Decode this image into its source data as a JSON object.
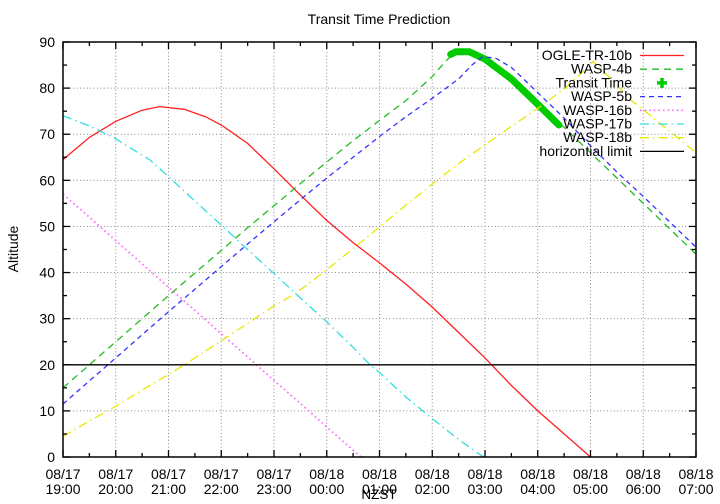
{
  "chart_data": {
    "type": "line",
    "title": "Transit Time Prediction",
    "xlabel": "NZST",
    "ylabel": "Altitude",
    "ylim": [
      0,
      90
    ],
    "xlim_hours": [
      0,
      12
    ],
    "grid": true,
    "legend_position": "top-right-inside",
    "y_ticks": [
      0,
      10,
      20,
      30,
      40,
      50,
      60,
      70,
      80,
      90
    ],
    "x_ticks": [
      {
        "date": "08/17",
        "time": "19:00"
      },
      {
        "date": "08/17",
        "time": "20:00"
      },
      {
        "date": "08/17",
        "time": "21:00"
      },
      {
        "date": "08/17",
        "time": "22:00"
      },
      {
        "date": "08/17",
        "time": "23:00"
      },
      {
        "date": "08/18",
        "time": "00:00"
      },
      {
        "date": "08/18",
        "time": "01:00"
      },
      {
        "date": "08/18",
        "time": "02:00"
      },
      {
        "date": "08/18",
        "time": "03:00"
      },
      {
        "date": "08/18",
        "time": "04:00"
      },
      {
        "date": "08/18",
        "time": "05:00"
      },
      {
        "date": "08/18",
        "time": "06:00"
      },
      {
        "date": "08/18",
        "time": "07:00"
      }
    ],
    "grid_color": "#888888",
    "series": [
      {
        "name": "OGLE-TR-10b",
        "color": "#ff2020",
        "style": "solid",
        "points": [
          [
            0,
            64.5
          ],
          [
            0.5,
            69.3
          ],
          [
            1,
            72.8
          ],
          [
            1.5,
            75.2
          ],
          [
            1.83,
            76
          ],
          [
            2.3,
            75.4
          ],
          [
            2.7,
            73.8
          ],
          [
            3,
            72
          ],
          [
            3.5,
            68
          ],
          [
            4,
            62.5
          ],
          [
            4.5,
            56.8
          ],
          [
            5,
            51.3
          ],
          [
            5.5,
            46.5
          ],
          [
            6,
            42.1
          ],
          [
            6.5,
            37.5
          ],
          [
            7,
            32.5
          ],
          [
            7.5,
            27
          ],
          [
            8,
            21.5
          ],
          [
            8.5,
            15.5
          ],
          [
            9,
            10
          ],
          [
            9.5,
            5
          ],
          [
            10,
            0
          ]
        ]
      },
      {
        "name": "WASP-4b",
        "color": "#22bb22",
        "style": "dashed",
        "points": [
          [
            0,
            15
          ],
          [
            0.5,
            20
          ],
          [
            1,
            25
          ],
          [
            1.5,
            30
          ],
          [
            2,
            35
          ],
          [
            2.5,
            39.9
          ],
          [
            3,
            44.8
          ],
          [
            3.5,
            49.7
          ],
          [
            4,
            54.5
          ],
          [
            4.5,
            59.3
          ],
          [
            5,
            64
          ],
          [
            5.5,
            68.6
          ],
          [
            6,
            73
          ],
          [
            6.5,
            77.3
          ],
          [
            7,
            82.5
          ],
          [
            7.25,
            85.8
          ],
          [
            7.45,
            87.9
          ],
          [
            7.7,
            87.9
          ],
          [
            8,
            86.3
          ],
          [
            8.5,
            82
          ],
          [
            9,
            76.5
          ],
          [
            9.5,
            71.5
          ],
          [
            10,
            66
          ],
          [
            10.5,
            60.5
          ],
          [
            11,
            55
          ],
          [
            11.5,
            49.5
          ],
          [
            12,
            44
          ]
        ]
      },
      {
        "name": "Transit Time",
        "color": "#00cc00",
        "style": "thick",
        "points": [
          [
            7.35,
            87.3
          ],
          [
            7.45,
            87.9
          ],
          [
            7.7,
            87.9
          ],
          [
            8,
            86.3
          ],
          [
            8.5,
            82
          ],
          [
            9,
            76.5
          ],
          [
            9.4,
            72
          ]
        ]
      },
      {
        "name": "WASP-5b",
        "color": "#3333ff",
        "style": "dashed2",
        "points": [
          [
            0,
            11.5
          ],
          [
            0.5,
            16.5
          ],
          [
            1,
            21.5
          ],
          [
            1.5,
            26.5
          ],
          [
            2,
            31.5
          ],
          [
            2.5,
            36.4
          ],
          [
            3,
            41.3
          ],
          [
            3.5,
            46.2
          ],
          [
            4,
            51
          ],
          [
            4.5,
            55.8
          ],
          [
            5,
            60.5
          ],
          [
            5.5,
            65
          ],
          [
            6,
            69.5
          ],
          [
            6.5,
            73.8
          ],
          [
            7,
            77.8
          ],
          [
            7.5,
            82
          ],
          [
            7.75,
            85
          ],
          [
            7.95,
            86.8
          ],
          [
            8.2,
            86.5
          ],
          [
            8.5,
            84.5
          ],
          [
            9,
            79
          ],
          [
            9.5,
            73.5
          ],
          [
            10,
            67.5
          ],
          [
            10.5,
            61.8
          ],
          [
            11,
            56.5
          ],
          [
            11.5,
            51
          ],
          [
            12,
            45.5
          ]
        ]
      },
      {
        "name": "WASP-16b",
        "color": "#ff66ff",
        "style": "dotted",
        "points": [
          [
            0,
            57
          ],
          [
            0.5,
            52
          ],
          [
            1,
            46.9
          ],
          [
            1.5,
            41.9
          ],
          [
            2,
            36.8
          ],
          [
            2.5,
            31.8
          ],
          [
            3,
            26.7
          ],
          [
            3.5,
            21.7
          ],
          [
            4,
            16.6
          ],
          [
            4.5,
            11.6
          ],
          [
            5,
            6.5
          ],
          [
            5.5,
            1.5
          ],
          [
            5.65,
            0
          ]
        ]
      },
      {
        "name": "WASP-17b",
        "color": "#33dddd",
        "style": "dashdot",
        "points": [
          [
            0,
            74
          ],
          [
            0.5,
            71.8
          ],
          [
            1,
            69
          ],
          [
            1.65,
            64.4
          ],
          [
            2,
            60.8
          ],
          [
            2.5,
            55.5
          ],
          [
            3,
            50.3
          ],
          [
            3.5,
            45
          ],
          [
            4,
            39.8
          ],
          [
            4.5,
            34.5
          ],
          [
            5,
            29.3
          ],
          [
            5.5,
            23.8
          ],
          [
            5.82,
            20
          ],
          [
            6,
            18.3
          ],
          [
            6.5,
            13
          ],
          [
            7,
            8.3
          ],
          [
            7.5,
            3.8
          ],
          [
            7.97,
            0
          ]
        ]
      },
      {
        "name": "WASP-18b",
        "color": "#e8e800",
        "style": "dashdot",
        "points": [
          [
            0,
            4.5
          ],
          [
            0.5,
            7.8
          ],
          [
            1,
            11
          ],
          [
            1.5,
            14.5
          ],
          [
            2,
            17.9
          ],
          [
            2.3,
            20
          ],
          [
            3,
            25.2
          ],
          [
            3.5,
            29
          ],
          [
            4,
            32.8
          ],
          [
            4.4,
            35.4
          ],
          [
            5,
            40.6
          ],
          [
            5.5,
            45.2
          ],
          [
            6,
            49.9
          ],
          [
            6.5,
            54.6
          ],
          [
            7,
            59.2
          ],
          [
            7.5,
            63.6
          ],
          [
            8,
            67.7
          ],
          [
            8.5,
            71.7
          ],
          [
            9,
            75.6
          ],
          [
            9.5,
            79.8
          ],
          [
            9.8,
            83
          ],
          [
            10.05,
            85.8
          ],
          [
            10.3,
            83
          ],
          [
            10.77,
            77.4
          ],
          [
            11.4,
            71.6
          ],
          [
            12,
            66
          ]
        ]
      },
      {
        "name": "horizontial limit",
        "color": "#000000",
        "style": "solid",
        "points": [
          [
            0,
            20
          ],
          [
            12,
            20
          ]
        ]
      }
    ]
  }
}
